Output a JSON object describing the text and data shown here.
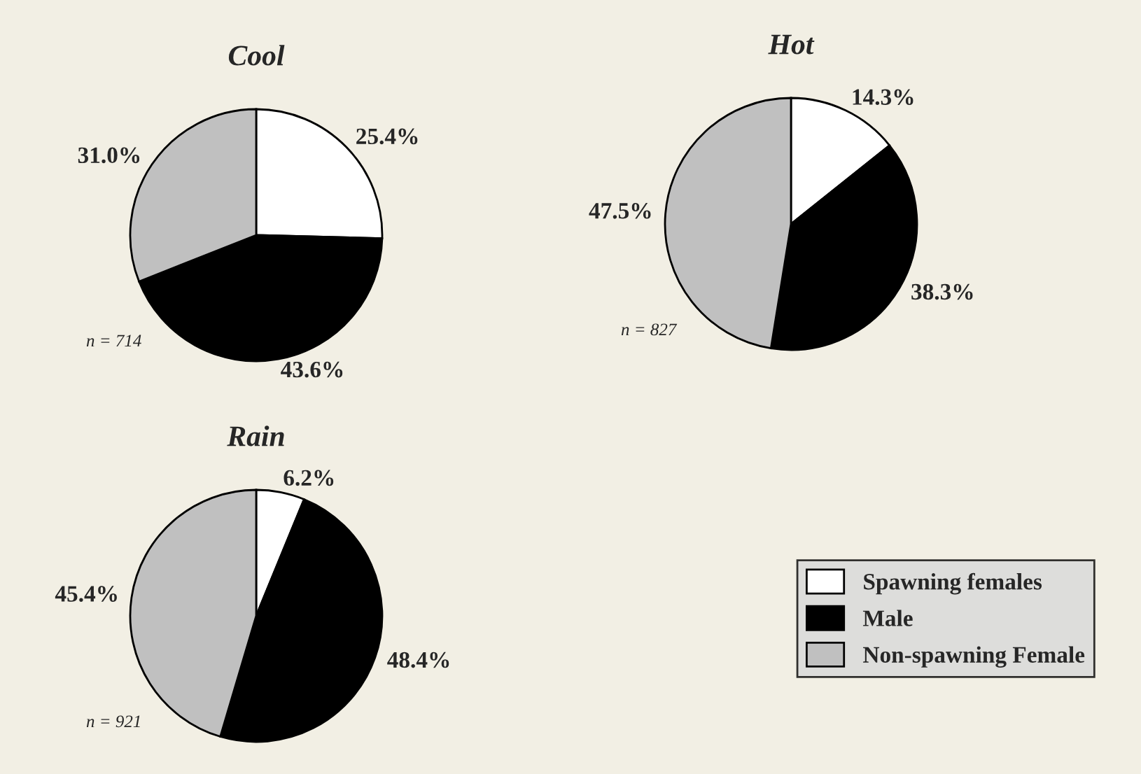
{
  "chart_data": [
    {
      "type": "pie",
      "title": "Cool",
      "categories": [
        "Spawning females",
        "Male",
        "Non-spawning Female"
      ],
      "values": [
        25.4,
        43.6,
        31.0
      ],
      "colors": [
        "#ffffff",
        "#000000",
        "#c0c0c0"
      ],
      "value_labels": [
        "25.4%",
        "43.6%",
        "31.0%"
      ],
      "annotations": [
        "n = 714"
      ],
      "legend": "bottom right"
    },
    {
      "type": "pie",
      "title": "Hot",
      "categories": [
        null,
        null,
        null
      ],
      "values": [
        14.3,
        38.3,
        47.5
      ],
      "colors": [
        "#ffffff",
        "#000000",
        "#c0c0c0"
      ],
      "value_labels": [
        "14.3%",
        "38.3%",
        "47.5%"
      ],
      "annotations": [
        "n = 827"
      ]
    },
    {
      "type": "pie",
      "title": "Rain",
      "categories": [
        null,
        null,
        null
      ],
      "values": [
        6.2,
        48.4,
        45.4
      ],
      "colors": [
        "#ffffff",
        "#000000",
        "#c0c0c0"
      ],
      "value_labels": [
        "6.2%",
        "48.4%",
        "45.4%"
      ],
      "annotations": [
        "n = 921"
      ]
    }
  ]
}
